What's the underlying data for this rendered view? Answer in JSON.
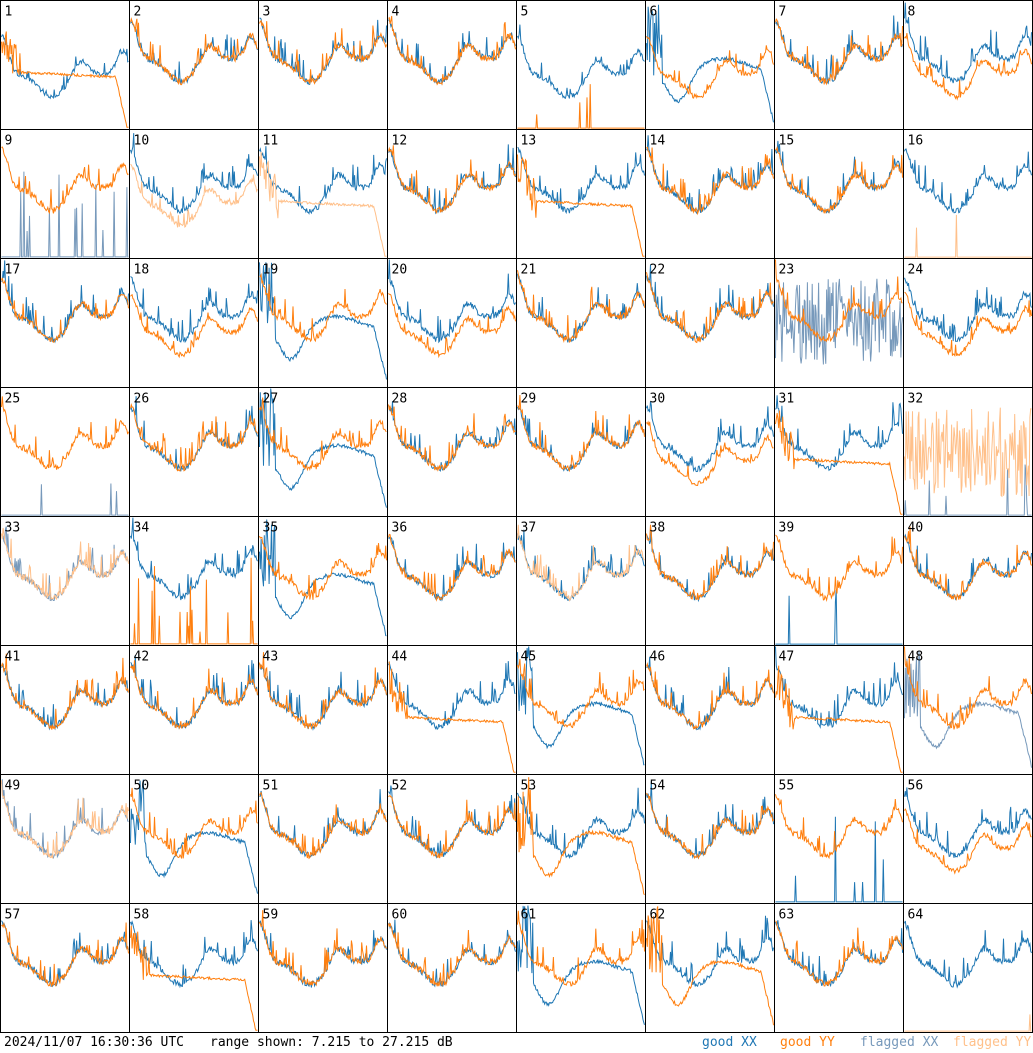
{
  "footer": {
    "timestamp": "2024/11/07 16:30:36 UTC",
    "range_text": "range shown: 7.215 to 27.215 dB"
  },
  "legend": [
    {
      "label": "good XX",
      "color": "#1f77b4"
    },
    {
      "label": "good YY",
      "color": "#ff7f0e"
    },
    {
      "label": "flagged XX",
      "color": "#7799bb"
    },
    {
      "label": "flagged YY",
      "color": "#ffc08a"
    }
  ],
  "chart_data": {
    "type": "line",
    "layout": "8x8 small multiples",
    "y_range_db": [
      7.215,
      27.215
    ],
    "series_types": [
      "good XX",
      "good YY",
      "flagged XX",
      "flagged YY"
    ],
    "panels": [
      {
        "id": "1",
        "xx": "good",
        "yy": "good",
        "xx_shape": "bandpass-low",
        "yy_shape": "rolloff"
      },
      {
        "id": "2",
        "xx": "good",
        "yy": "good",
        "xx_shape": "bandpass",
        "yy_shape": "bandpass"
      },
      {
        "id": "3",
        "xx": "good",
        "yy": "good",
        "xx_shape": "bandpass",
        "yy_shape": "bandpass"
      },
      {
        "id": "4",
        "xx": "good",
        "yy": "good",
        "xx_shape": "bandpass",
        "yy_shape": "bandpass"
      },
      {
        "id": "5",
        "xx": "good",
        "yy": "good",
        "xx_shape": "bandpass-low",
        "yy_shape": "flat-zero"
      },
      {
        "id": "6",
        "xx": "good",
        "yy": "good",
        "xx_shape": "dip",
        "yy_shape": "bandpass-low"
      },
      {
        "id": "7",
        "xx": "good",
        "yy": "good",
        "xx_shape": "bandpass",
        "yy_shape": "bandpass"
      },
      {
        "id": "8",
        "xx": "good",
        "yy": "good",
        "xx_shape": "bandpass",
        "yy_shape": "bandpass-low"
      },
      {
        "id": "9",
        "xx": "flagged",
        "yy": "good",
        "xx_shape": "spikes",
        "yy_shape": "bandpass"
      },
      {
        "id": "10",
        "xx": "good",
        "yy": "flagged",
        "xx_shape": "bandpass",
        "yy_shape": "bandpass-low"
      },
      {
        "id": "11",
        "xx": "good",
        "yy": "flagged",
        "xx_shape": "bandpass",
        "yy_shape": "rolloff"
      },
      {
        "id": "12",
        "xx": "good",
        "yy": "good",
        "xx_shape": "bandpass",
        "yy_shape": "bandpass"
      },
      {
        "id": "13",
        "xx": "good",
        "yy": "good",
        "xx_shape": "bandpass",
        "yy_shape": "rolloff"
      },
      {
        "id": "14",
        "xx": "good",
        "yy": "good",
        "xx_shape": "bandpass",
        "yy_shape": "bandpass"
      },
      {
        "id": "15",
        "xx": "good",
        "yy": "good",
        "xx_shape": "bandpass",
        "yy_shape": "bandpass"
      },
      {
        "id": "16",
        "xx": "good",
        "yy": "flagged",
        "xx_shape": "bandpass",
        "yy_shape": "flat-zero"
      },
      {
        "id": "17",
        "xx": "good",
        "yy": "good",
        "xx_shape": "bandpass",
        "yy_shape": "bandpass"
      },
      {
        "id": "18",
        "xx": "good",
        "yy": "good",
        "xx_shape": "bandpass",
        "yy_shape": "bandpass-low"
      },
      {
        "id": "19",
        "xx": "good",
        "yy": "good",
        "xx_shape": "dip",
        "yy_shape": "bandpass"
      },
      {
        "id": "20",
        "xx": "good",
        "yy": "good",
        "xx_shape": "bandpass",
        "yy_shape": "bandpass-low"
      },
      {
        "id": "21",
        "xx": "good",
        "yy": "good",
        "xx_shape": "bandpass",
        "yy_shape": "bandpass"
      },
      {
        "id": "22",
        "xx": "good",
        "yy": "good",
        "xx_shape": "bandpass",
        "yy_shape": "bandpass"
      },
      {
        "id": "23",
        "xx": "flagged",
        "yy": "good",
        "xx_shape": "noise",
        "yy_shape": "bandpass"
      },
      {
        "id": "24",
        "xx": "good",
        "yy": "good",
        "xx_shape": "bandpass",
        "yy_shape": "bandpass-low"
      },
      {
        "id": "25",
        "xx": "flagged",
        "yy": "good",
        "xx_shape": "flat-zero",
        "yy_shape": "bandpass"
      },
      {
        "id": "26",
        "xx": "good",
        "yy": "good",
        "xx_shape": "bandpass",
        "yy_shape": "bandpass"
      },
      {
        "id": "27",
        "xx": "good",
        "yy": "good",
        "xx_shape": "dip",
        "yy_shape": "bandpass"
      },
      {
        "id": "28",
        "xx": "good",
        "yy": "good",
        "xx_shape": "bandpass",
        "yy_shape": "bandpass"
      },
      {
        "id": "29",
        "xx": "good",
        "yy": "good",
        "xx_shape": "bandpass",
        "yy_shape": "bandpass"
      },
      {
        "id": "30",
        "xx": "good",
        "yy": "good",
        "xx_shape": "bandpass",
        "yy_shape": "bandpass-low"
      },
      {
        "id": "31",
        "xx": "good",
        "yy": "good",
        "xx_shape": "bandpass",
        "yy_shape": "rolloff"
      },
      {
        "id": "32",
        "xx": "flagged",
        "yy": "flagged",
        "xx_shape": "flat-zero",
        "yy_shape": "noise"
      },
      {
        "id": "33",
        "xx": "flagged",
        "yy": "flagged",
        "xx_shape": "bandpass",
        "yy_shape": "bandpass"
      },
      {
        "id": "34",
        "xx": "good",
        "yy": "good",
        "xx_shape": "bandpass",
        "yy_shape": "spikes"
      },
      {
        "id": "35",
        "xx": "good",
        "yy": "good",
        "xx_shape": "dip",
        "yy_shape": "bandpass"
      },
      {
        "id": "36",
        "xx": "good",
        "yy": "good",
        "xx_shape": "bandpass",
        "yy_shape": "bandpass"
      },
      {
        "id": "37",
        "xx": "good",
        "yy": "flagged",
        "xx_shape": "bandpass",
        "yy_shape": "bandpass"
      },
      {
        "id": "38",
        "xx": "good",
        "yy": "good",
        "xx_shape": "bandpass",
        "yy_shape": "bandpass"
      },
      {
        "id": "39",
        "xx": "good",
        "yy": "good",
        "xx_shape": "flat-zero",
        "yy_shape": "bandpass"
      },
      {
        "id": "40",
        "xx": "good",
        "yy": "good",
        "xx_shape": "bandpass",
        "yy_shape": "bandpass"
      },
      {
        "id": "41",
        "xx": "good",
        "yy": "good",
        "xx_shape": "bandpass",
        "yy_shape": "bandpass"
      },
      {
        "id": "42",
        "xx": "good",
        "yy": "good",
        "xx_shape": "bandpass",
        "yy_shape": "bandpass"
      },
      {
        "id": "43",
        "xx": "good",
        "yy": "good",
        "xx_shape": "bandpass",
        "yy_shape": "bandpass"
      },
      {
        "id": "44",
        "xx": "good",
        "yy": "good",
        "xx_shape": "bandpass",
        "yy_shape": "rolloff"
      },
      {
        "id": "45",
        "xx": "good",
        "yy": "good",
        "xx_shape": "dip",
        "yy_shape": "bandpass"
      },
      {
        "id": "46",
        "xx": "good",
        "yy": "good",
        "xx_shape": "bandpass",
        "yy_shape": "bandpass"
      },
      {
        "id": "47",
        "xx": "good",
        "yy": "good",
        "xx_shape": "bandpass",
        "yy_shape": "rolloff"
      },
      {
        "id": "48",
        "xx": "flagged",
        "yy": "good",
        "xx_shape": "dip",
        "yy_shape": "bandpass"
      },
      {
        "id": "49",
        "xx": "flagged",
        "yy": "flagged",
        "xx_shape": "bandpass",
        "yy_shape": "bandpass"
      },
      {
        "id": "50",
        "xx": "good",
        "yy": "good",
        "xx_shape": "dip",
        "yy_shape": "bandpass"
      },
      {
        "id": "51",
        "xx": "good",
        "yy": "good",
        "xx_shape": "bandpass",
        "yy_shape": "bandpass"
      },
      {
        "id": "52",
        "xx": "good",
        "yy": "good",
        "xx_shape": "bandpass",
        "yy_shape": "bandpass"
      },
      {
        "id": "53",
        "xx": "good",
        "yy": "good",
        "xx_shape": "bandpass",
        "yy_shape": "dip"
      },
      {
        "id": "54",
        "xx": "good",
        "yy": "good",
        "xx_shape": "bandpass",
        "yy_shape": "bandpass"
      },
      {
        "id": "55",
        "xx": "good",
        "yy": "good",
        "xx_shape": "spikes",
        "yy_shape": "bandpass"
      },
      {
        "id": "56",
        "xx": "good",
        "yy": "good",
        "xx_shape": "bandpass",
        "yy_shape": "bandpass-low"
      },
      {
        "id": "57",
        "xx": "good",
        "yy": "good",
        "xx_shape": "bandpass",
        "yy_shape": "bandpass"
      },
      {
        "id": "58",
        "xx": "good",
        "yy": "good",
        "xx_shape": "bandpass",
        "yy_shape": "rolloff"
      },
      {
        "id": "59",
        "xx": "good",
        "yy": "good",
        "xx_shape": "bandpass",
        "yy_shape": "bandpass"
      },
      {
        "id": "60",
        "xx": "good",
        "yy": "good",
        "xx_shape": "bandpass",
        "yy_shape": "bandpass"
      },
      {
        "id": "61",
        "xx": "good",
        "yy": "good",
        "xx_shape": "dip",
        "yy_shape": "bandpass"
      },
      {
        "id": "62",
        "xx": "good",
        "yy": "good",
        "xx_shape": "bandpass",
        "yy_shape": "dip"
      },
      {
        "id": "63",
        "xx": "good",
        "yy": "good",
        "xx_shape": "bandpass",
        "yy_shape": "bandpass"
      },
      {
        "id": "64",
        "xx": "good",
        "yy": "flagged",
        "xx_shape": "bandpass",
        "yy_shape": "flat-zero"
      }
    ]
  }
}
